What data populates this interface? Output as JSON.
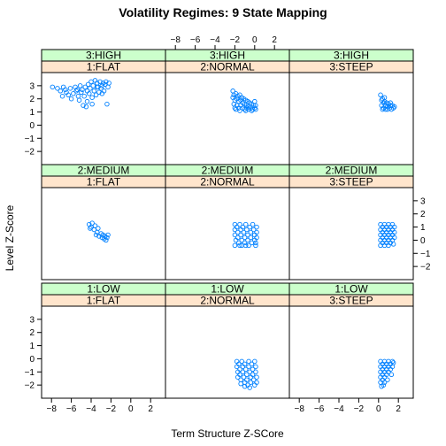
{
  "chart_data": {
    "type": "scatter",
    "title": "Volatility Regimes: 9 State Mapping",
    "xlabel": "Term Structure Z-SCore",
    "ylabel": "Level Z-Score",
    "xlim": [
      -9,
      3.5
    ],
    "ylim": [
      -3,
      4
    ],
    "xticks": [
      -8,
      -6,
      -4,
      -2,
      0,
      2
    ],
    "yticks": [
      -2,
      -1,
      0,
      1,
      2,
      3
    ],
    "grid": false,
    "colors": {
      "point": "#0080ff",
      "strip_level": "#ccffcc",
      "strip_shape": "#ffe5cc",
      "border": "#000000"
    },
    "panels": [
      {
        "level": "3:HIGH",
        "shape": "1:FLAT",
        "points": [
          [
            -7.9,
            2.9
          ],
          [
            -7.4,
            2.8
          ],
          [
            -7.1,
            2.6
          ],
          [
            -6.9,
            2.2
          ],
          [
            -6.8,
            2.9
          ],
          [
            -6.5,
            2.5
          ],
          [
            -6.3,
            2.3
          ],
          [
            -6.1,
            2.8
          ],
          [
            -6.0,
            2.0
          ],
          [
            -5.8,
            2.4
          ],
          [
            -5.6,
            2.9
          ],
          [
            -5.5,
            2.6
          ],
          [
            -5.3,
            2.2
          ],
          [
            -5.2,
            1.9
          ],
          [
            -5.1,
            3.0
          ],
          [
            -5.0,
            2.5
          ],
          [
            -4.9,
            2.7
          ],
          [
            -4.8,
            1.5
          ],
          [
            -4.7,
            2.2
          ],
          [
            -4.6,
            2.9
          ],
          [
            -4.5,
            1.4
          ],
          [
            -4.4,
            2.6
          ],
          [
            -4.3,
            3.1
          ],
          [
            -4.2,
            2.4
          ],
          [
            -4.1,
            2.8
          ],
          [
            -4.0,
            3.3
          ],
          [
            -3.9,
            2.1
          ],
          [
            -3.8,
            3.0
          ],
          [
            -3.7,
            2.6
          ],
          [
            -3.6,
            3.4
          ],
          [
            -3.5,
            2.3
          ],
          [
            -3.4,
            3.2
          ],
          [
            -3.3,
            2.9
          ],
          [
            -3.2,
            2.5
          ],
          [
            -3.1,
            3.3
          ],
          [
            -3.0,
            2.8
          ],
          [
            -2.9,
            3.0
          ],
          [
            -2.8,
            3.2
          ],
          [
            -2.7,
            2.6
          ],
          [
            -2.6,
            3.1
          ],
          [
            -2.5,
            3.3
          ],
          [
            -2.4,
            1.6
          ],
          [
            -2.3,
            2.9
          ],
          [
            -2.2,
            3.2
          ],
          [
            -3.9,
            1.6
          ],
          [
            -4.4,
            1.8
          ],
          [
            -5.4,
            2.7
          ],
          [
            -6.6,
            2.7
          ],
          [
            -2.9,
            2.4
          ],
          [
            -3.4,
            2.9
          ]
        ]
      },
      {
        "level": "3:HIGH",
        "shape": "2:NORMAL",
        "points": [
          [
            -2.2,
            2.6
          ],
          [
            -2.1,
            2.3
          ],
          [
            -2.0,
            1.9
          ],
          [
            -2.1,
            1.6
          ],
          [
            -2.0,
            1.3
          ],
          [
            -1.9,
            2.4
          ],
          [
            -1.8,
            2.0
          ],
          [
            -1.8,
            1.5
          ],
          [
            -1.7,
            2.2
          ],
          [
            -1.6,
            1.8
          ],
          [
            -1.6,
            1.3
          ],
          [
            -1.5,
            2.3
          ],
          [
            -1.4,
            1.9
          ],
          [
            -1.4,
            1.5
          ],
          [
            -1.3,
            2.1
          ],
          [
            -1.2,
            1.7
          ],
          [
            -1.2,
            1.3
          ],
          [
            -1.1,
            2.0
          ],
          [
            -1.0,
            1.6
          ],
          [
            -1.0,
            1.2
          ],
          [
            -0.9,
            1.9
          ],
          [
            -0.8,
            1.5
          ],
          [
            -0.8,
            1.3
          ],
          [
            -0.7,
            1.8
          ],
          [
            -0.6,
            1.4
          ],
          [
            -0.6,
            1.2
          ],
          [
            -0.5,
            1.7
          ],
          [
            -0.4,
            1.3
          ],
          [
            -0.3,
            1.6
          ],
          [
            -0.2,
            1.2
          ],
          [
            -0.1,
            1.5
          ],
          [
            0.0,
            1.3
          ],
          [
            0.1,
            1.5
          ],
          [
            0.1,
            1.2
          ],
          [
            -2.2,
            2.1
          ],
          [
            -1.9,
            1.2
          ],
          [
            -1.5,
            1.1
          ],
          [
            -0.9,
            1.1
          ],
          [
            -0.3,
            1.1
          ],
          [
            0.0,
            1.8
          ]
        ]
      },
      {
        "level": "3:HIGH",
        "shape": "3:STEEP",
        "points": [
          [
            0.2,
            2.3
          ],
          [
            0.3,
            1.9
          ],
          [
            0.3,
            1.5
          ],
          [
            0.4,
            2.0
          ],
          [
            0.5,
            1.7
          ],
          [
            0.5,
            1.3
          ],
          [
            0.6,
            1.8
          ],
          [
            0.7,
            1.5
          ],
          [
            0.7,
            1.2
          ],
          [
            0.8,
            1.7
          ],
          [
            0.9,
            1.4
          ],
          [
            1.0,
            1.6
          ],
          [
            1.1,
            1.3
          ],
          [
            1.2,
            1.5
          ],
          [
            1.3,
            1.2
          ],
          [
            1.4,
            1.5
          ],
          [
            1.5,
            1.3
          ],
          [
            1.6,
            1.4
          ],
          [
            0.4,
            1.2
          ],
          [
            0.9,
            1.2
          ],
          [
            1.2,
            1.7
          ],
          [
            0.6,
            2.1
          ]
        ]
      },
      {
        "level": "2:MEDIUM",
        "shape": "1:FLAT",
        "points": [
          [
            -4.2,
            1.2
          ],
          [
            -4.0,
            1.0
          ],
          [
            -3.9,
            1.3
          ],
          [
            -3.7,
            0.8
          ],
          [
            -3.6,
            1.1
          ],
          [
            -3.4,
            0.6
          ],
          [
            -3.3,
            0.9
          ],
          [
            -3.2,
            0.3
          ],
          [
            -3.0,
            0.5
          ],
          [
            -2.9,
            0.2
          ],
          [
            -2.8,
            0.4
          ],
          [
            -2.7,
            0.1
          ],
          [
            -2.6,
            0.3
          ],
          [
            -2.5,
            0.0
          ],
          [
            -2.4,
            0.2
          ],
          [
            -2.3,
            0.4
          ],
          [
            -3.5,
            0.4
          ],
          [
            -4.1,
            0.9
          ]
        ]
      },
      {
        "level": "2:MEDIUM",
        "shape": "2:NORMAL",
        "points": [
          [
            -2.0,
            1.2
          ],
          [
            -2.0,
            0.8
          ],
          [
            -2.0,
            0.4
          ],
          [
            -1.9,
            0.0
          ],
          [
            -2.0,
            -0.4
          ],
          [
            -1.8,
            1.0
          ],
          [
            -1.7,
            0.6
          ],
          [
            -1.7,
            0.2
          ],
          [
            -1.6,
            -0.2
          ],
          [
            -1.5,
            1.2
          ],
          [
            -1.4,
            0.8
          ],
          [
            -1.4,
            0.4
          ],
          [
            -1.3,
            0.0
          ],
          [
            -1.3,
            -0.4
          ],
          [
            -1.2,
            1.0
          ],
          [
            -1.1,
            0.6
          ],
          [
            -1.0,
            0.2
          ],
          [
            -1.0,
            -0.2
          ],
          [
            -0.9,
            1.2
          ],
          [
            -0.8,
            0.8
          ],
          [
            -0.7,
            0.4
          ],
          [
            -0.7,
            0.0
          ],
          [
            -0.6,
            -0.4
          ],
          [
            -0.5,
            1.0
          ],
          [
            -0.4,
            0.6
          ],
          [
            -0.4,
            0.2
          ],
          [
            -0.3,
            -0.2
          ],
          [
            -0.2,
            1.2
          ],
          [
            -0.1,
            0.8
          ],
          [
            0.0,
            0.4
          ],
          [
            0.0,
            0.0
          ],
          [
            0.1,
            -0.4
          ],
          [
            0.2,
            1.0
          ],
          [
            0.2,
            0.6
          ],
          [
            0.2,
            0.2
          ],
          [
            0.1,
            -0.2
          ],
          [
            -1.5,
            -0.4
          ],
          [
            -0.9,
            -0.4
          ]
        ]
      },
      {
        "level": "2:MEDIUM",
        "shape": "3:STEEP",
        "points": [
          [
            0.2,
            1.2
          ],
          [
            0.2,
            0.8
          ],
          [
            0.2,
            0.4
          ],
          [
            0.2,
            0.0
          ],
          [
            0.2,
            -0.4
          ],
          [
            0.4,
            1.0
          ],
          [
            0.4,
            0.6
          ],
          [
            0.4,
            0.2
          ],
          [
            0.4,
            -0.2
          ],
          [
            0.6,
            1.2
          ],
          [
            0.6,
            0.8
          ],
          [
            0.6,
            0.4
          ],
          [
            0.6,
            0.0
          ],
          [
            0.6,
            -0.4
          ],
          [
            0.8,
            1.0
          ],
          [
            0.8,
            0.6
          ],
          [
            0.8,
            0.2
          ],
          [
            0.8,
            -0.2
          ],
          [
            1.0,
            1.2
          ],
          [
            1.0,
            0.8
          ],
          [
            1.0,
            0.4
          ],
          [
            1.0,
            0.0
          ],
          [
            1.0,
            -0.4
          ],
          [
            1.2,
            1.0
          ],
          [
            1.2,
            0.6
          ],
          [
            1.2,
            0.2
          ],
          [
            1.2,
            -0.2
          ],
          [
            1.4,
            1.2
          ],
          [
            1.4,
            0.8
          ],
          [
            1.4,
            0.4
          ],
          [
            1.4,
            0.0
          ],
          [
            1.5,
            -0.3
          ],
          [
            1.6,
            1.0
          ],
          [
            1.6,
            0.6
          ],
          [
            1.6,
            0.2
          ]
        ]
      },
      {
        "level": "1:LOW",
        "shape": "1:FLAT",
        "points": []
      },
      {
        "level": "1:LOW",
        "shape": "2:NORMAL",
        "points": [
          [
            -1.8,
            -0.2
          ],
          [
            -1.8,
            -0.6
          ],
          [
            -1.7,
            -1.0
          ],
          [
            -1.7,
            -1.4
          ],
          [
            -1.6,
            -0.4
          ],
          [
            -1.5,
            -0.8
          ],
          [
            -1.5,
            -1.2
          ],
          [
            -1.4,
            -1.6
          ],
          [
            -1.3,
            -0.2
          ],
          [
            -1.2,
            -0.6
          ],
          [
            -1.2,
            -1.0
          ],
          [
            -1.1,
            -1.4
          ],
          [
            -1.0,
            -1.8
          ],
          [
            -1.0,
            -0.4
          ],
          [
            -0.9,
            -0.8
          ],
          [
            -0.8,
            -1.2
          ],
          [
            -0.8,
            -1.6
          ],
          [
            -0.7,
            -2.0
          ],
          [
            -0.6,
            -0.2
          ],
          [
            -0.6,
            -0.6
          ],
          [
            -0.5,
            -1.0
          ],
          [
            -0.4,
            -1.4
          ],
          [
            -0.4,
            -1.8
          ],
          [
            -0.3,
            -0.4
          ],
          [
            -0.2,
            -0.8
          ],
          [
            -0.2,
            -1.2
          ],
          [
            -0.1,
            -1.6
          ],
          [
            0.0,
            -2.0
          ],
          [
            0.0,
            -0.2
          ],
          [
            0.1,
            -0.6
          ],
          [
            0.1,
            -1.0
          ],
          [
            0.2,
            -1.4
          ],
          [
            0.2,
            -1.8
          ],
          [
            -1.4,
            -1.9
          ],
          [
            -1.0,
            -2.1
          ],
          [
            -0.5,
            -2.2
          ]
        ]
      },
      {
        "level": "1:LOW",
        "shape": "3:STEEP",
        "points": [
          [
            0.2,
            -0.2
          ],
          [
            0.2,
            -0.6
          ],
          [
            0.2,
            -1.0
          ],
          [
            0.2,
            -1.4
          ],
          [
            0.2,
            -1.8
          ],
          [
            0.3,
            -2.1
          ],
          [
            0.4,
            -0.4
          ],
          [
            0.4,
            -0.8
          ],
          [
            0.4,
            -1.2
          ],
          [
            0.4,
            -1.6
          ],
          [
            0.5,
            -2.0
          ],
          [
            0.6,
            -0.2
          ],
          [
            0.6,
            -0.6
          ],
          [
            0.6,
            -1.0
          ],
          [
            0.6,
            -1.4
          ],
          [
            0.6,
            -1.8
          ],
          [
            0.8,
            -0.4
          ],
          [
            0.8,
            -0.8
          ],
          [
            0.8,
            -1.2
          ],
          [
            0.9,
            -1.6
          ],
          [
            1.0,
            -0.2
          ],
          [
            1.0,
            -0.6
          ],
          [
            1.0,
            -1.0
          ],
          [
            1.2,
            -0.4
          ],
          [
            1.2,
            -0.8
          ],
          [
            1.3,
            -1.2
          ],
          [
            1.4,
            -0.2
          ],
          [
            1.4,
            -0.6
          ],
          [
            1.5,
            -0.3
          ]
        ]
      }
    ]
  }
}
